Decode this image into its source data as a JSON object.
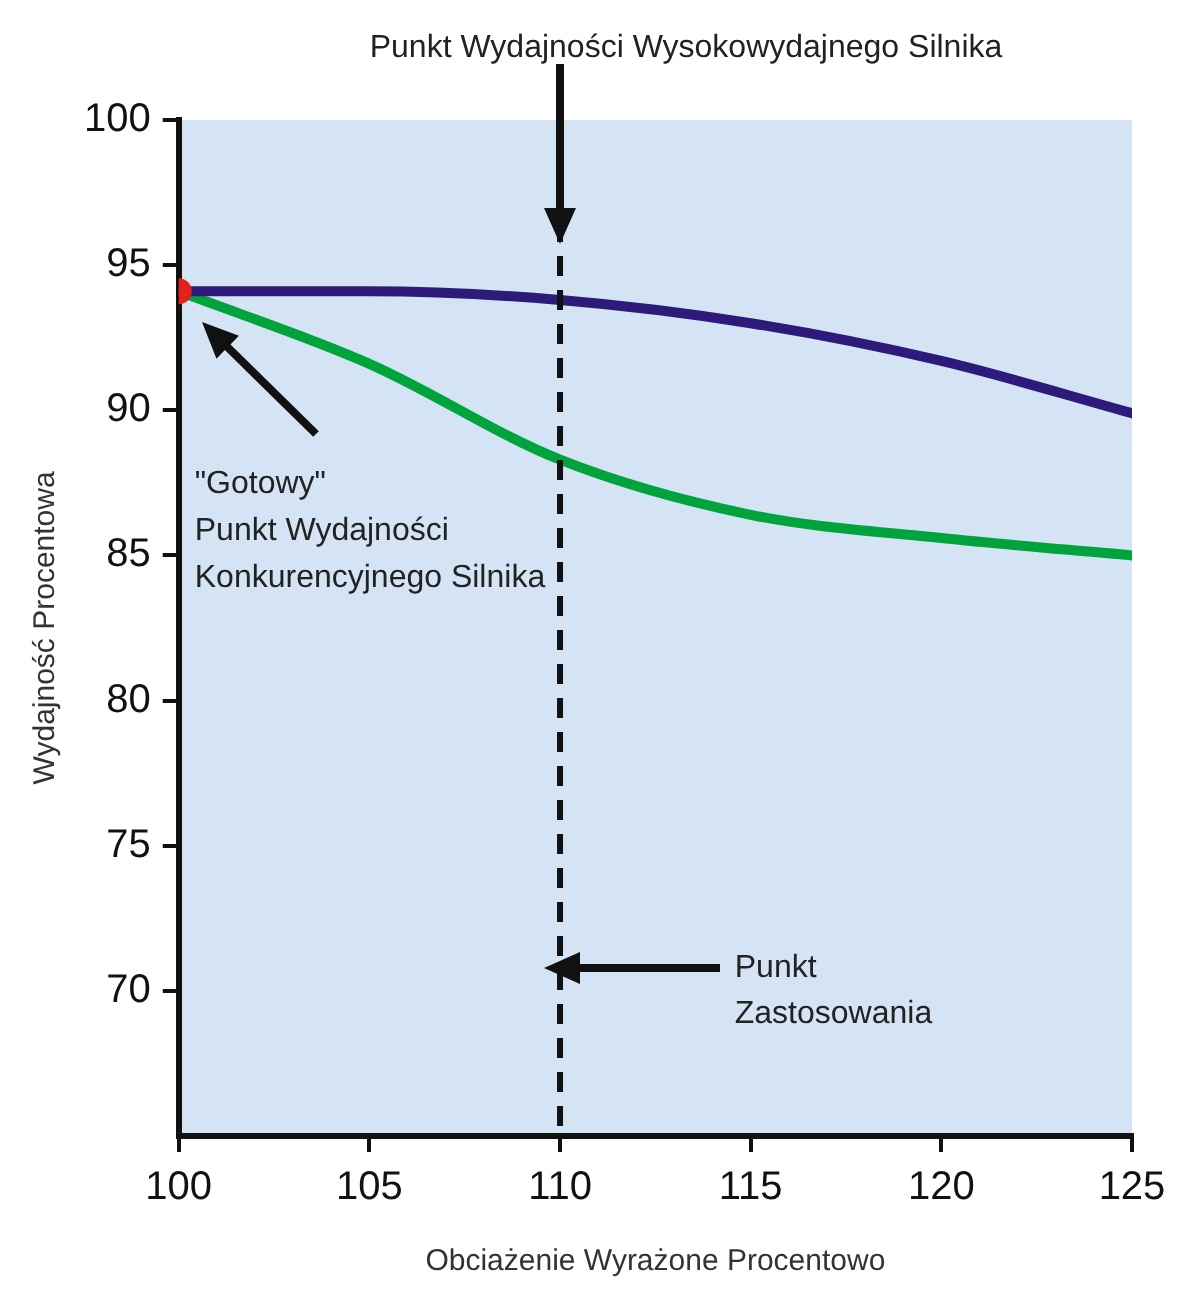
{
  "chart_data": {
    "type": "line",
    "xlabel": "Obciażenie Wyrażone Procentowo",
    "ylabel": "Wydajność Procentowa",
    "annotations": [
      "Punkt Wydajności Wysokowydajnego Silnika",
      "\"Gotowy\"\nPunkt Wydajności\nKonkurencyjnego Silnika",
      "Punkt\nZastosowania"
    ],
    "series": [
      {
        "color": "#2e1a7a",
        "x": [
          100,
          105,
          110,
          115,
          120,
          125
        ],
        "values": [
          94.1,
          94.1,
          93.8,
          93,
          91.7,
          89.9
        ]
      },
      {
        "color": "#00a33c",
        "x": [
          100,
          105,
          110,
          115,
          120,
          125
        ],
        "values": [
          94.1,
          91.6,
          88.3,
          86.4,
          85.6,
          85
        ]
      },
      {
        "type": "scatter",
        "color": "#e3201b",
        "x": [
          100
        ],
        "values": [
          94.1
        ]
      }
    ],
    "xlim": [
      100,
      125
    ],
    "xticks": [
      100,
      105,
      110,
      115,
      120,
      125
    ],
    "ylim": [
      65,
      100
    ],
    "yticks": [
      70,
      75,
      80,
      85,
      90,
      95,
      100
    ],
    "ref_lines": [
      {
        "axis": "x",
        "value": 110,
        "line_style": "dashed",
        "color": "#111111"
      }
    ],
    "legend": false,
    "line_style": "solid"
  }
}
